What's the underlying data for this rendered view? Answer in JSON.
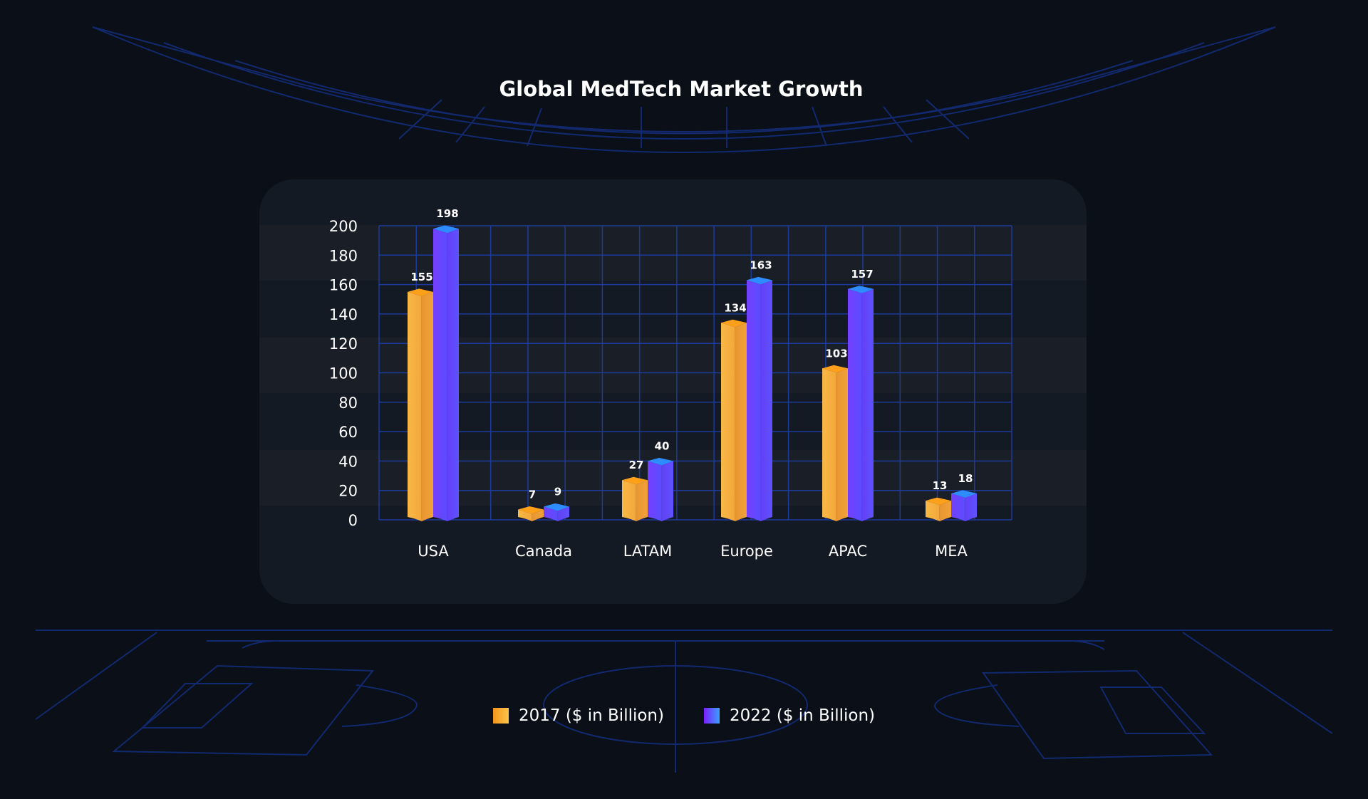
{
  "chart_data": {
    "type": "bar",
    "title": "Global MedTech Market Growth",
    "xlabel": "",
    "ylabel": "",
    "categories": [
      "USA",
      "Canada",
      "LATAM",
      "Europe",
      "APAC",
      "MEA"
    ],
    "series": [
      {
        "name": "2017 ($ in Billion)",
        "values": [
          155,
          7,
          27,
          134,
          103,
          13
        ],
        "color": "#f6ad3f"
      },
      {
        "name": "2022 ($ in Billion)",
        "values": [
          198,
          9,
          40,
          163,
          157,
          18
        ],
        "color": "#6548ff"
      }
    ],
    "ylim": [
      0,
      200
    ],
    "yticks": [
      0,
      20,
      40,
      60,
      80,
      100,
      120,
      140,
      160,
      180,
      200
    ],
    "grid": true,
    "legend": "bottom",
    "colors": {
      "background": "#0a0f18",
      "panel": "#141a23",
      "grid": "#1c3a9a",
      "decor_lines": "#13296e"
    }
  }
}
